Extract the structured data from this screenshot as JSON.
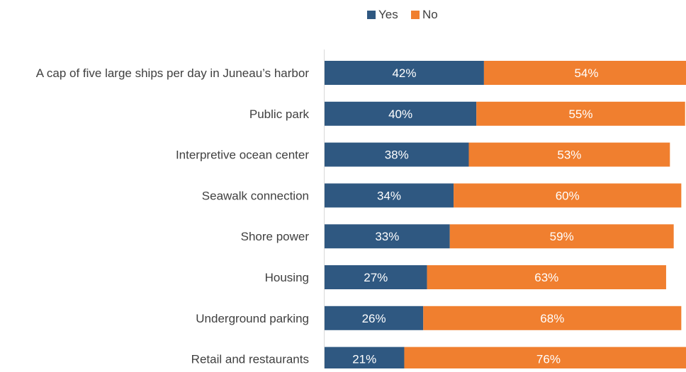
{
  "chart_data": {
    "type": "bar",
    "orientation": "horizontal",
    "stacked": true,
    "title": "",
    "xlabel": "",
    "ylabel": "",
    "xlim": [
      0,
      100
    ],
    "grid": false,
    "legend": {
      "position": "top",
      "entries": [
        "Yes",
        "No"
      ]
    },
    "categories": [
      "A cap of five large ships per day in Juneau’s harbor",
      "Public park",
      "Interpretive ocean center",
      "Seawalk connection",
      "Shore power",
      "Housing",
      "Underground parking",
      "Retail and restaurants"
    ],
    "series": [
      {
        "name": "Yes",
        "color": "#2f5881",
        "values": [
          42,
          40,
          38,
          34,
          33,
          27,
          26,
          21
        ],
        "labels": [
          "42%",
          "40%",
          "38%",
          "34%",
          "33%",
          "27%",
          "26%",
          "21%"
        ]
      },
      {
        "name": "No",
        "color": "#f07f2f",
        "values": [
          54,
          55,
          53,
          60,
          59,
          63,
          68,
          76
        ],
        "labels": [
          "54%",
          "55%",
          "53%",
          "60%",
          "59%",
          "63%",
          "68%",
          "76%"
        ]
      }
    ]
  }
}
